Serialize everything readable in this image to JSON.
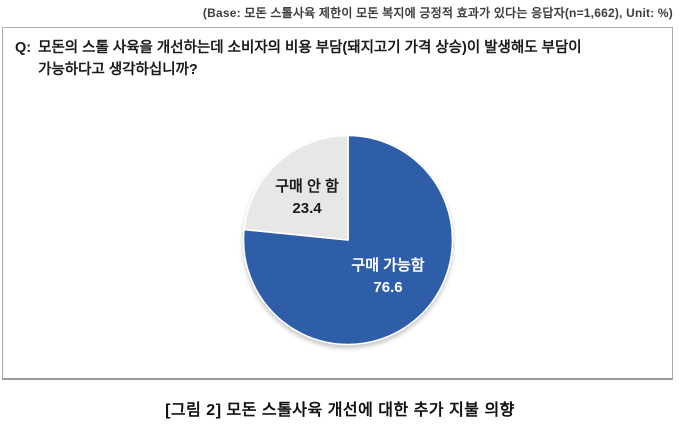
{
  "base_note": "(Base: 모돈 스톨사육 제한이 모돈 복지에 긍정적 효과가 있다는 응답자(n=1,662), Unit: %)",
  "question": {
    "prefix": "Q:",
    "lines": [
      "모돈의 스톨 사육을 개선하는데 소비자의 비용 부담(돼지고기 가격 상승)이 발생해도 부담이",
      "가능하다고 생각하십니까?"
    ]
  },
  "caption": "[그림 2] 모돈 스톨사육 개선에 대한 추가 지불 의향",
  "chart_data": {
    "type": "pie",
    "labels": [
      "구매 가능함",
      "구매 안 함"
    ],
    "values": [
      76.6,
      23.4
    ],
    "colors": [
      "#2f5ea8",
      "#e7e7e6"
    ],
    "label_text_colors": [
      "#ffffff",
      "#1a1a1a"
    ],
    "slice_border_color": "#ffffff",
    "start_angle_deg": 0,
    "direction": "clockwise",
    "legend": "none",
    "labels_position": "inside"
  }
}
